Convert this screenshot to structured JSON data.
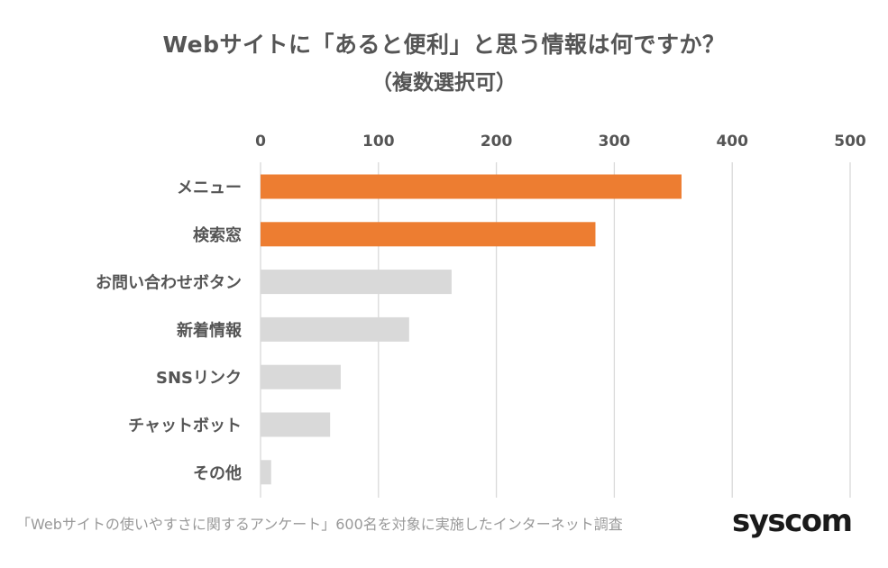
{
  "chart_data": {
    "type": "bar",
    "orientation": "horizontal",
    "title": "Webサイトに「あると便利」と思う情報は何ですか？",
    "subtitle": "（複数選択可）",
    "categories": [
      "メニュー",
      "検索窓",
      "お問い合わせボタン",
      "新着情報",
      "SNSリンク",
      "チャットボット",
      "その他"
    ],
    "values": [
      357,
      284,
      162,
      126,
      68,
      59,
      9
    ],
    "bar_colors": [
      "#ED7D31",
      "#ED7D31",
      "#D9D9D9",
      "#D9D9D9",
      "#D9D9D9",
      "#D9D9D9",
      "#D9D9D9"
    ],
    "x_ticks": [
      0,
      100,
      200,
      300,
      400,
      500
    ],
    "xlim": [
      0,
      500
    ],
    "axis_position": "top",
    "grid": true
  },
  "footer": {
    "note": "「Webサイトの使いやすさに関するアンケート」600名を対象に実施したインターネット調査",
    "brand": "syscom"
  },
  "colors": {
    "highlight": "#ED7D31",
    "default_bar": "#D9D9D9",
    "text": "#555555",
    "gridline": "#D9D9D9"
  }
}
